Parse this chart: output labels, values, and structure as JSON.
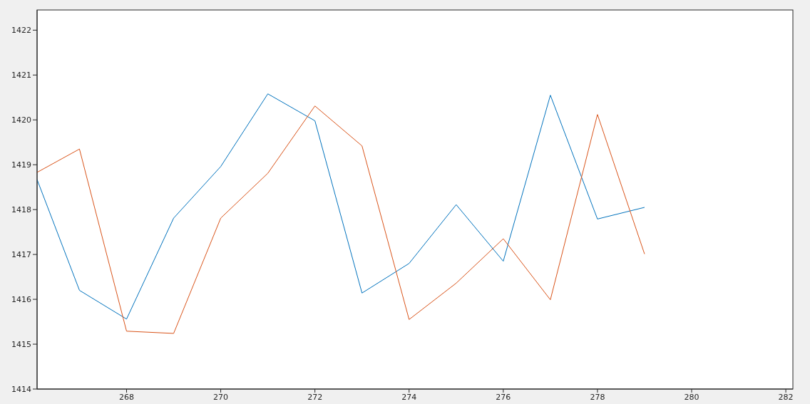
{
  "chart_data": {
    "type": "line",
    "x": [
      266.1,
      267,
      268,
      269,
      270,
      271,
      272,
      273,
      274,
      275,
      276,
      277,
      278,
      279
    ],
    "series": [
      {
        "color": "#0072bd",
        "values": [
          1418.67,
          1416.2,
          1415.56,
          1417.81,
          1418.96,
          1420.58,
          1419.98,
          1416.14,
          1416.8,
          1418.11,
          1416.85,
          1420.55,
          1417.79,
          1418.05
        ]
      },
      {
        "color": "#d95319",
        "values": [
          1418.83,
          1419.35,
          1415.29,
          1415.24,
          1417.81,
          1418.81,
          1420.31,
          1419.42,
          1415.55,
          1416.36,
          1417.35,
          1415.99,
          1420.12,
          1417.01
        ]
      }
    ],
    "xlim": [
      266.1,
      282.15
    ],
    "xticks": [
      268,
      270,
      272,
      274,
      276,
      278,
      280,
      282
    ],
    "ylim": [
      1414,
      1422.45
    ],
    "yticks": [
      1414,
      1415,
      1416,
      1417,
      1418,
      1419,
      1420,
      1421,
      1422
    ],
    "grid": false,
    "legend": false,
    "marker": "none",
    "line_style": "solid"
  }
}
